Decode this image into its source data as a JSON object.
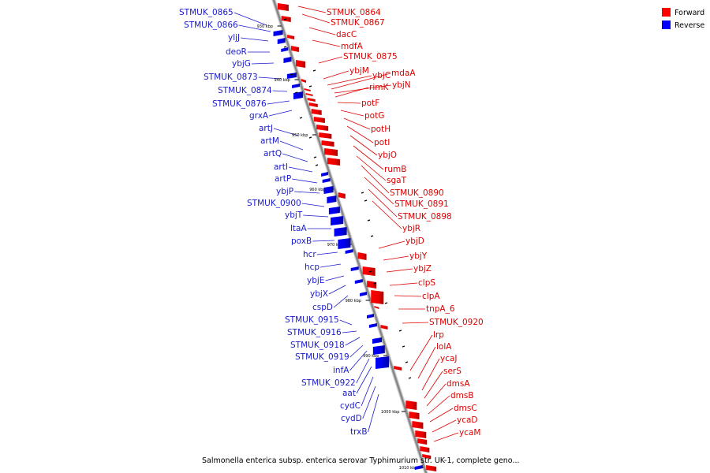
{
  "caption": "Salmonella enterica subsp. enterica serovar Typhimurium str. UK-1, complete geno...",
  "legend": [
    {
      "label": "Forward",
      "color": "#ff0000"
    },
    {
      "label": "Reverse",
      "color": "#0000ff"
    }
  ],
  "colors": {
    "forward": "#ff0000",
    "reverse": "#0000ff",
    "forward_label": "#dd0000",
    "reverse_label": "#1a1acc",
    "backbone": "#888888"
  },
  "ticks": [
    "930 kbp",
    "940 kbp",
    "950 kbp",
    "960 kbp",
    "970 kbp",
    "980 kbp",
    "990 kbp",
    "1000 kbp",
    "1010 kbp"
  ],
  "forward_genes": [
    "STMUK_0864",
    "STMUK_0867",
    "dacC",
    "mdfA",
    "STMUK_0875",
    "ybjM",
    "ybjC",
    "mdaA",
    "ybjN",
    "rimK",
    "potF",
    "potG",
    "potH",
    "potI",
    "ybjO",
    "rumB",
    "sgaT",
    "STMUK_0890",
    "STMUK_0891",
    "STMUK_0898",
    "ybjR",
    "ybjD",
    "ybjY",
    "ybjZ",
    "clpS",
    "clpA",
    "tnpA_6",
    "STMUK_0920",
    "lrp",
    "lolA",
    "ycaJ",
    "serS",
    "dmsA",
    "dmsB",
    "dmsC",
    "ycaD",
    "ycaM"
  ],
  "reverse_genes": [
    "STMUK_0865",
    "STMUK_0866",
    "yljJ",
    "deoR",
    "ybjG",
    "STMUK_0873",
    "STMUK_0874",
    "STMUK_0876",
    "grxA",
    "artJ",
    "artM",
    "artQ",
    "artI",
    "artP",
    "ybjP",
    "STMUK_0900",
    "ybjT",
    "ltaA",
    "poxB",
    "hcr",
    "hcp",
    "ybjE",
    "ybjX",
    "cspD",
    "STMUK_0915",
    "STMUK_0916",
    "STMUK_0918",
    "STMUK_0919",
    "infA",
    "STMUK_0922",
    "aat",
    "cydC",
    "cydD",
    "trxB"
  ]
}
